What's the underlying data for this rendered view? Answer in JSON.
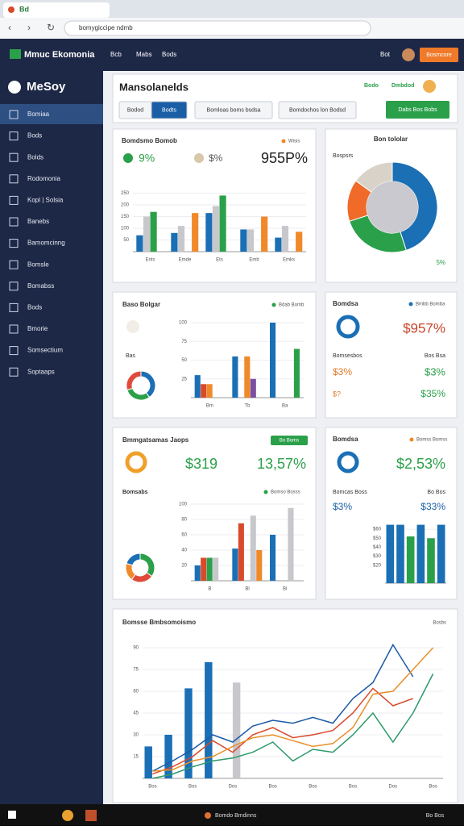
{
  "browser": {
    "tab": "Bd",
    "url": "bomygiccipe ndmb"
  },
  "app": {
    "brand": "Mmuc Ekomonia",
    "nav": [
      "Bcb",
      "Mabs",
      "Bods"
    ],
    "user": "Bot",
    "cta": "Bosmcore"
  },
  "sidebar": {
    "logo": "MeSoy",
    "items": [
      "Bomiaa",
      "Bods",
      "Bolds",
      "Rodomonia",
      "Kopl | Solsia",
      "Banebs",
      "Bamomcinng",
      "Bomsle",
      "Bomabss",
      "Bods",
      "Bmorie",
      "Somsectium",
      "Soptaaps"
    ]
  },
  "header": {
    "title": "Mansolanelds",
    "badges": [
      "Bodo",
      "Dmbdod"
    ],
    "tabs": [
      "Bodod",
      "Bodts",
      "Bomloas boms bsdsa",
      "Bomdochos lon Bodsd"
    ],
    "button": "Dabs Bos Bobs"
  },
  "card1": {
    "title": "Bomdsmo Bomob",
    "legend": "Wisis",
    "stat1": "9%",
    "stat2": "$%",
    "big": "955P%",
    "chart": {
      "type": "bar",
      "categories": [
        "Ents",
        "Emde",
        "Ets",
        "Emb",
        "Emks"
      ],
      "ylim": [
        0,
        300
      ],
      "yticks": [
        50,
        100,
        150,
        200,
        250
      ],
      "series": [
        {
          "color": "#1a6fb5",
          "values": [
            70,
            80,
            165,
            95,
            60
          ]
        },
        {
          "color": "#c8c8cc",
          "values": [
            150,
            110,
            195,
            95,
            110
          ]
        },
        {
          "color": "#2ba04a",
          "values": [
            170,
            null,
            240,
            null,
            null
          ]
        },
        {
          "color": "#f0892a",
          "values": [
            null,
            165,
            null,
            150,
            85
          ]
        }
      ]
    }
  },
  "card2": {
    "title": "Bon tololar",
    "label": "Bospsrs",
    "note": "5%",
    "chart": {
      "type": "pie",
      "values": [
        45,
        25,
        15,
        15
      ],
      "colors": [
        "#1a6fb5",
        "#2ba04a",
        "#f06a2a",
        "#d8d2c8"
      ]
    }
  },
  "card3": {
    "title": "Baso Bolgar",
    "legend": "Bdab Bomb",
    "label": "Bas",
    "donut": {
      "type": "pie",
      "values": [
        40,
        30,
        30
      ],
      "colors": [
        "#1a6fb5",
        "#2ba04a",
        "#e04a3a"
      ]
    },
    "chart": {
      "type": "bar",
      "categories": [
        "Bm",
        "Tb",
        "Ba"
      ],
      "ylim": [
        0,
        100
      ],
      "yticks": [
        25,
        50,
        75,
        100
      ],
      "series": [
        {
          "color": "#1a6fb5",
          "values": [
            30,
            55,
            100
          ]
        },
        {
          "color": "#d84a2b",
          "values": [
            18,
            null,
            null
          ]
        },
        {
          "color": "#f0892a",
          "values": [
            18,
            55,
            null
          ]
        },
        {
          "color": "#7b4fa0",
          "values": [
            null,
            25,
            null
          ]
        },
        {
          "color": "#2ba04a",
          "values": [
            null,
            null,
            65
          ]
        }
      ]
    }
  },
  "card4": {
    "title": "Bomdsa",
    "legend": "Bmbb Bomba",
    "big": "$957%",
    "row_left": "Bomsesbos",
    "row_right": "Bos Bsa",
    "a1": "$3%",
    "a2": "$3%",
    "b1": "$?",
    "b2": "$35%"
  },
  "card5": {
    "title": "Bmmgatsamas Jaops",
    "tag": "Bo Boms",
    "stat1": "$319",
    "stat2": "13,57%",
    "sub": "Bomsabs",
    "legend": "Bomso Bosss",
    "donut": {
      "type": "pie",
      "values": [
        35,
        25,
        20,
        20
      ],
      "colors": [
        "#2ba04a",
        "#e04a3a",
        "#f0892a",
        "#1a6fb5"
      ]
    },
    "chart": {
      "type": "bar",
      "categories": [
        "B",
        "Bl",
        "Bi"
      ],
      "ylim": [
        0,
        100
      ],
      "yticks": [
        20,
        40,
        60,
        80,
        100
      ],
      "series": [
        {
          "color": "#1a6fb5",
          "values": [
            20,
            42,
            60
          ]
        },
        {
          "color": "#d84a2b",
          "values": [
            30,
            75,
            null
          ]
        },
        {
          "color": "#2ba04a",
          "values": [
            30,
            null,
            null
          ]
        },
        {
          "color": "#c8c8cc",
          "values": [
            30,
            85,
            95
          ]
        },
        {
          "color": "#f0892a",
          "values": [
            null,
            40,
            null
          ]
        }
      ]
    }
  },
  "card6": {
    "title": "Bomdsa",
    "legend": "Bomss Bomss",
    "big": "$2,53%",
    "row_left": "Bomcas Boss",
    "row_right": "Bo Bos",
    "a1": "$3%",
    "a2": "$33%",
    "chart": {
      "type": "bar",
      "ylim": [
        0,
        70
      ],
      "yticks": [
        {
          "value": 20,
          "label": "$20"
        },
        {
          "value": 30,
          "label": "$30"
        },
        {
          "value": 40,
          "label": "$40"
        },
        {
          "value": 50,
          "label": "$50"
        },
        {
          "value": 60,
          "label": "$60"
        }
      ],
      "values": [
        65,
        65,
        52,
        65,
        50,
        65
      ],
      "colors": [
        "#1a6fb5",
        "#1a6fb5",
        "#2ba04a",
        "#1a6fb5",
        "#2ba04a",
        "#1a6fb5"
      ]
    }
  },
  "card7": {
    "title": "Bomsse Bmbsomoismo",
    "legend": "Bosbs",
    "chart": {
      "type": "bar",
      "categories": [
        "Bos",
        null,
        "Bos",
        null,
        "Dos",
        null,
        "Bos",
        null,
        "Bos",
        null,
        "Bos",
        null,
        "Dos",
        null,
        "Bos"
      ],
      "ylim": [
        0,
        100
      ],
      "yticks": [
        15,
        30,
        45,
        60,
        75,
        90
      ],
      "series": [
        {
          "color": "#1a6fb5",
          "values": [
            22,
            30,
            62,
            80,
            null,
            null,
            null,
            null,
            null,
            null,
            null,
            null,
            null,
            null,
            null
          ]
        },
        {
          "color": "#c8c8cc",
          "values": [
            null,
            null,
            null,
            null,
            66,
            null,
            null,
            null,
            null,
            null,
            null,
            null,
            null,
            null,
            null
          ]
        },
        {
          "type": "line",
          "color": "#d84a2b",
          "values": [
            3,
            8,
            15,
            26,
            18,
            30,
            35,
            28,
            30,
            33,
            45,
            62,
            50,
            55,
            null
          ]
        },
        {
          "type": "line",
          "color": "#1a5aa5",
          "values": [
            5,
            12,
            20,
            30,
            25,
            36,
            40,
            38,
            42,
            38,
            55,
            66,
            92,
            70,
            null
          ]
        },
        {
          "type": "line",
          "color": "#e8902a",
          "values": [
            5,
            6,
            12,
            15,
            22,
            28,
            30,
            26,
            22,
            24,
            35,
            58,
            60,
            75,
            90
          ]
        },
        {
          "type": "line",
          "color": "#2b9a6a",
          "values": [
            0,
            3,
            8,
            12,
            14,
            18,
            25,
            12,
            20,
            18,
            30,
            45,
            25,
            45,
            72
          ]
        }
      ]
    }
  },
  "taskbar": {
    "app": "Bomdo Bmdinns",
    "time": "Bo Bos"
  }
}
